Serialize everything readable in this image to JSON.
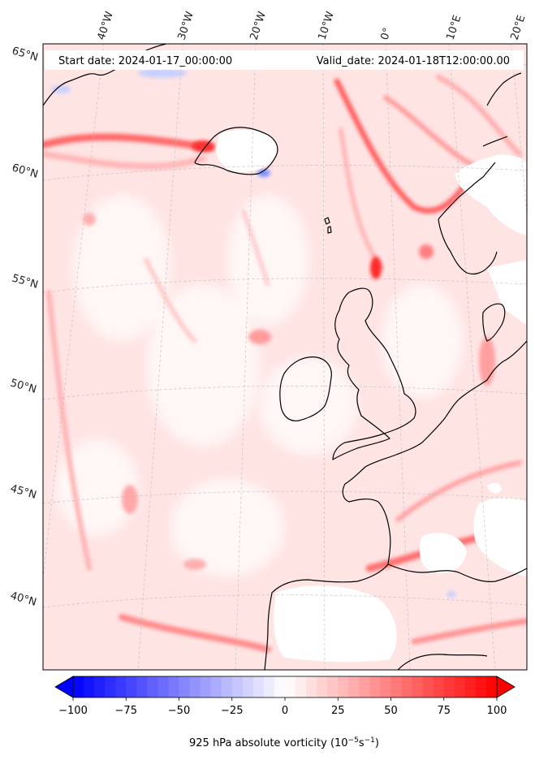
{
  "header": {
    "start_date": "Start date: 2024-01-17_00:00:00",
    "valid_date": "Valid_date: 2024-01-18T12:00:00.00"
  },
  "lon_labels": [
    "40°W",
    "30°W",
    "20°W",
    "10°W",
    "0°",
    "10°E",
    "20°E"
  ],
  "lat_labels": [
    "65°N",
    "60°N",
    "55°N",
    "50°N",
    "45°N",
    "40°N"
  ],
  "colorbar": {
    "ticks": [
      "−100",
      "−75",
      "−50",
      "−25",
      "0",
      "25",
      "50",
      "75",
      "100"
    ],
    "title": "925 hPa absolute vorticity (10",
    "title_exp1": "−5",
    "title_mid": "s",
    "title_exp2": "−1",
    "title_end": ")",
    "min": -100,
    "max": 100,
    "levels": 40,
    "colormap": "bwr",
    "extend": "both"
  },
  "colors": {
    "negative": "#0000ff",
    "zero": "#ffffff",
    "positive": "#ff0000",
    "coastline": "#000000",
    "gridline": "#aaaaaa"
  }
}
